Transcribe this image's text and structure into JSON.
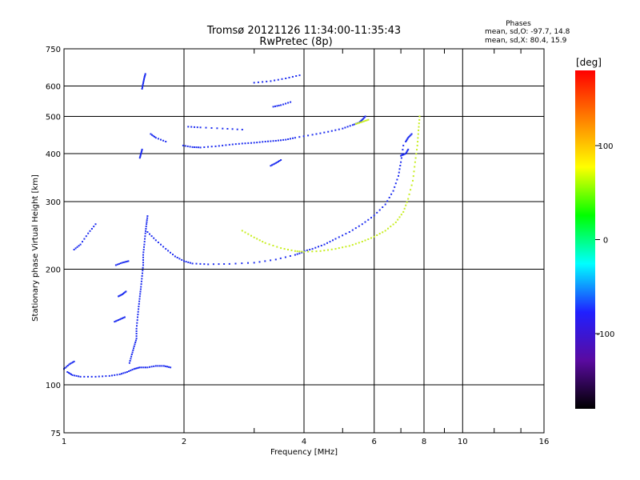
{
  "chart_data": {
    "type": "scatter",
    "title": "Tromsø 20121126 11:34:00-11:35:43",
    "subtitle": "RwPretec (8p)",
    "xlabel": "Frequency [MHz]",
    "ylabel": "Stationary phase Virtual Height [km]",
    "x_scale": "log",
    "y_scale": "log",
    "xlim": [
      1,
      16
    ],
    "ylim": [
      75,
      750
    ],
    "x_ticks": [
      1,
      2,
      4,
      6,
      8,
      10,
      16
    ],
    "x_minor_ticks": [
      3,
      5,
      7,
      9,
      12,
      14
    ],
    "y_ticks": [
      75,
      100,
      200,
      300,
      400,
      500,
      600,
      750
    ],
    "grid": true,
    "stats": {
      "title": "Phases",
      "line_o": "mean, sd,O: -97.7, 14.8",
      "line_x": "mean, sd,X:  80.4, 15.9"
    },
    "colorbar": {
      "label": "[deg]",
      "range": [
        -180,
        180
      ],
      "ticks": [
        100,
        0,
        -100
      ],
      "stops": [
        "#000000",
        "#5a0aa0",
        "#2020ff",
        "#00ffff",
        "#00ff00",
        "#ffff00",
        "#ff8000",
        "#ff0000"
      ]
    },
    "series": [
      {
        "color": "#1e2ef0",
        "segments": [
          [
            [
              1.02,
              108
            ],
            [
              1.05,
              106
            ],
            [
              1.1,
              105
            ],
            [
              1.2,
              105
            ],
            [
              1.3,
              105.5
            ],
            [
              1.38,
              106.5
            ],
            [
              1.44,
              108
            ],
            [
              1.5,
              110
            ],
            [
              1.55,
              111
            ],
            [
              1.62,
              111
            ],
            [
              1.7,
              112
            ],
            [
              1.78,
              112
            ],
            [
              1.85,
              111
            ]
          ],
          [
            [
              1.0,
              110
            ],
            [
              1.03,
              113
            ],
            [
              1.06,
              115
            ]
          ],
          [
            [
              1.46,
              114
            ],
            [
              1.48,
              120
            ],
            [
              1.5,
              126
            ],
            [
              1.52,
              132
            ],
            [
              1.52,
              140
            ],
            [
              1.53,
              150
            ],
            [
              1.54,
              160
            ],
            [
              1.55,
              170
            ],
            [
              1.56,
              180
            ],
            [
              1.57,
              192
            ],
            [
              1.58,
              205
            ],
            [
              1.58,
              218
            ],
            [
              1.59,
              232
            ],
            [
              1.6,
              248
            ],
            [
              1.61,
              262
            ],
            [
              1.62,
              275
            ]
          ],
          [
            [
              1.62,
              250
            ],
            [
              1.7,
              238
            ],
            [
              1.8,
              226
            ],
            [
              1.9,
              216
            ],
            [
              2.0,
              210
            ],
            [
              2.1,
              207
            ],
            [
              2.3,
              206
            ],
            [
              2.6,
              206.5
            ],
            [
              3.0,
              208
            ],
            [
              3.4,
              212
            ],
            [
              3.8,
              218
            ],
            [
              4.0,
              222
            ]
          ],
          [
            [
              1.34,
              146
            ],
            [
              1.38,
              148
            ],
            [
              1.42,
              150
            ]
          ],
          [
            [
              1.37,
              170
            ],
            [
              1.4,
              172
            ],
            [
              1.43,
              175
            ]
          ],
          [
            [
              1.35,
              205
            ],
            [
              1.4,
              208
            ],
            [
              1.45,
              210
            ]
          ],
          [
            [
              1.06,
              225
            ],
            [
              1.1,
              232
            ],
            [
              1.15,
              248
            ],
            [
              1.2,
              262
            ]
          ],
          [
            [
              1.57,
              590
            ],
            [
              1.58,
              610
            ],
            [
              1.59,
              630
            ],
            [
              1.6,
              645
            ]
          ],
          [
            [
              1.55,
              390
            ],
            [
              1.56,
              400
            ],
            [
              1.57,
              410
            ]
          ],
          [
            [
              1.65,
              450
            ],
            [
              1.7,
              440
            ],
            [
              1.8,
              430
            ]
          ],
          [
            [
              1.99,
              420
            ],
            [
              2.1,
              416
            ],
            [
              2.2,
              415
            ],
            [
              2.4,
              418
            ],
            [
              2.6,
              422
            ],
            [
              2.8,
              425
            ],
            [
              3.0,
              427
            ],
            [
              3.2,
              430
            ],
            [
              3.4,
              432
            ],
            [
              3.6,
              435
            ],
            [
              3.8,
              440
            ],
            [
              4.2,
              448
            ],
            [
              4.6,
              456
            ],
            [
              5.0,
              465
            ],
            [
              5.3,
              475
            ],
            [
              5.5,
              482
            ],
            [
              5.6,
              490
            ],
            [
              5.7,
              500
            ]
          ],
          [
            [
              2.05,
              470
            ],
            [
              2.2,
              468
            ],
            [
              2.5,
              465
            ],
            [
              2.8,
              462
            ]
          ],
          [
            [
              3.0,
              612
            ],
            [
              3.3,
              618
            ],
            [
              3.6,
              628
            ],
            [
              3.9,
              640
            ]
          ],
          [
            [
              3.35,
              530
            ],
            [
              3.5,
              535
            ],
            [
              3.7,
              545
            ]
          ],
          [
            [
              3.3,
              372
            ],
            [
              3.4,
              378
            ],
            [
              3.5,
              385
            ]
          ],
          [
            [
              3.95,
              222
            ],
            [
              4.2,
              226
            ],
            [
              4.5,
              232
            ],
            [
              4.8,
              240
            ],
            [
              5.2,
              250
            ],
            [
              5.6,
              262
            ],
            [
              6.0,
              276
            ],
            [
              6.4,
              295
            ],
            [
              6.7,
              320
            ],
            [
              6.9,
              350
            ],
            [
              7.0,
              380
            ],
            [
              7.1,
              420
            ]
          ],
          [
            [
              7.0,
              395
            ],
            [
              7.2,
              400
            ],
            [
              7.3,
              410
            ]
          ],
          [
            [
              7.2,
              430
            ],
            [
              7.3,
              440
            ],
            [
              7.45,
              450
            ]
          ]
        ]
      },
      {
        "color": "#c8ee20",
        "segments": [
          [
            [
              2.8,
              252
            ],
            [
              3.0,
              242
            ],
            [
              3.2,
              234
            ],
            [
              3.5,
              227
            ],
            [
              3.8,
              223
            ],
            [
              4.0,
              222
            ],
            [
              4.4,
              223
            ],
            [
              4.8,
              226
            ],
            [
              5.2,
              230
            ],
            [
              5.6,
              236
            ],
            [
              6.0,
              243
            ],
            [
              6.4,
              252
            ],
            [
              6.8,
              265
            ],
            [
              7.1,
              282
            ],
            [
              7.3,
              305
            ],
            [
              7.5,
              340
            ],
            [
              7.6,
              380
            ],
            [
              7.7,
              420
            ],
            [
              7.75,
              460
            ],
            [
              7.8,
              500
            ]
          ],
          [
            [
              5.4,
              478
            ],
            [
              5.6,
              484
            ],
            [
              5.8,
              490
            ]
          ]
        ]
      }
    ]
  }
}
